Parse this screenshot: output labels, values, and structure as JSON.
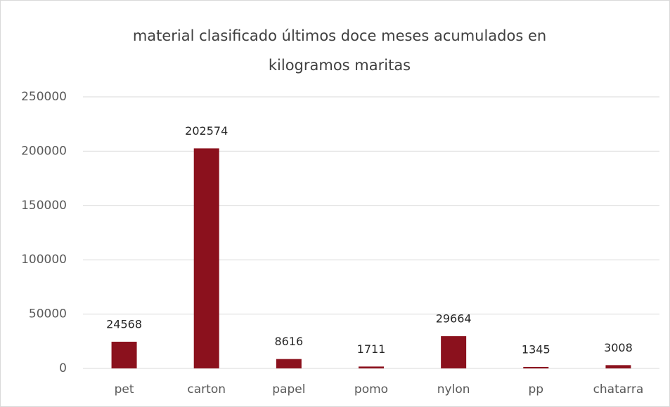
{
  "chart_data": {
    "type": "bar",
    "title": "material clasificado últimos doce meses acumulados en kilogramos maritas",
    "categories": [
      "pet",
      "carton",
      "papel",
      "pomo",
      "nylon",
      "pp",
      "chatarra"
    ],
    "values": [
      24568,
      202574,
      8616,
      1711,
      29664,
      1345,
      3008
    ],
    "color": "#8b111d",
    "ylim": [
      0,
      250000
    ],
    "yticks": [
      0,
      50000,
      100000,
      150000,
      200000,
      250000
    ],
    "grid": true
  }
}
